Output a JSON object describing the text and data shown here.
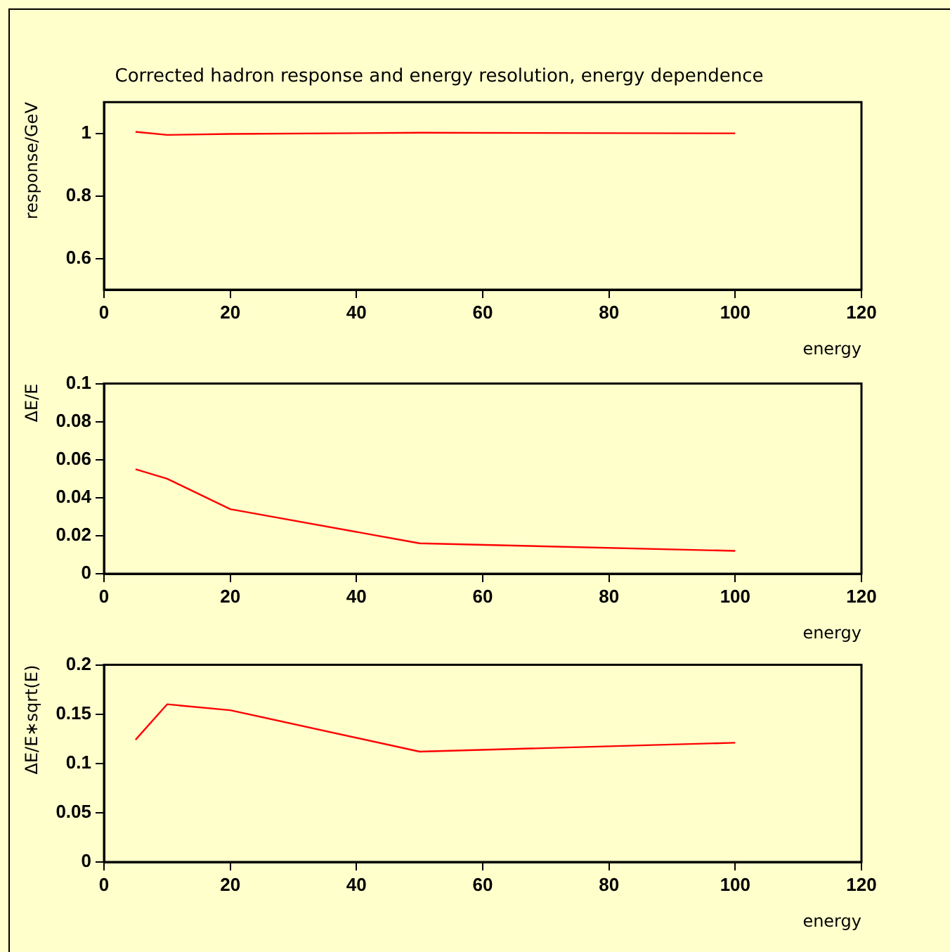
{
  "chart_data": [
    {
      "type": "line",
      "title": "Corrected hadron response and energy resolution, energy dependence",
      "xlabel": "energy",
      "ylabel": "response/GeV",
      "x": [
        5,
        10,
        20,
        50,
        100
      ],
      "series": [
        {
          "color": "#ff0000",
          "values": [
            1.005,
            0.995,
            0.998,
            1.002,
            1.0
          ]
        }
      ],
      "xlim": [
        0,
        120
      ],
      "xticks": [
        0,
        20,
        40,
        60,
        80,
        100,
        120
      ],
      "ylim": [
        0.5,
        1.1
      ],
      "yticks": [
        0.6,
        0.8,
        1
      ],
      "grid": false,
      "legend": false,
      "marker": "none"
    },
    {
      "type": "line",
      "xlabel": "energy",
      "ylabel": "ΔE/E",
      "x": [
        5,
        10,
        20,
        50,
        100
      ],
      "series": [
        {
          "color": "#ff0000",
          "values": [
            0.055,
            0.05,
            0.034,
            0.016,
            0.012
          ]
        }
      ],
      "xlim": [
        0,
        120
      ],
      "xticks": [
        0,
        20,
        40,
        60,
        80,
        100,
        120
      ],
      "ylim": [
        0,
        0.1
      ],
      "yticks": [
        0,
        0.02,
        0.04,
        0.06,
        0.08,
        0.1
      ],
      "grid": false,
      "legend": false,
      "marker": "none"
    },
    {
      "type": "line",
      "xlabel": "energy",
      "ylabel": "ΔE/E∗sqrt(E)",
      "x": [
        5,
        10,
        20,
        50,
        100
      ],
      "series": [
        {
          "color": "#ff0000",
          "values": [
            0.124,
            0.16,
            0.154,
            0.112,
            0.121
          ]
        }
      ],
      "xlim": [
        0,
        120
      ],
      "xticks": [
        0,
        20,
        40,
        60,
        80,
        100,
        120
      ],
      "ylim": [
        0,
        0.2
      ],
      "yticks": [
        0,
        0.05,
        0.1,
        0.15,
        0.2
      ],
      "grid": false,
      "legend": false,
      "marker": "none"
    }
  ]
}
